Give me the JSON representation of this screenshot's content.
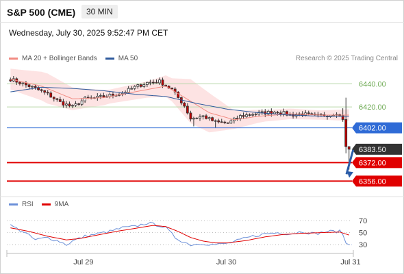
{
  "header": {
    "title": "S&P 500 (CME)",
    "timeframe": "30 MIN",
    "datetime": "Wednesday, July 30, 2025 9:52:47 PM CET"
  },
  "legend_main": [
    {
      "label": "MA 20 + Bollinger Bands",
      "color": "#f28b82"
    },
    {
      "label": "MA 50",
      "color": "#2e5a9c"
    }
  ],
  "legend_rsi": [
    {
      "label": "RSI",
      "color": "#6a8fd8"
    },
    {
      "label": "9MA",
      "color": "#e00000"
    }
  ],
  "copyright": "Research © 2025 Trading Central",
  "chart_data": [
    {
      "type": "candlestick",
      "title": "S&P 500 (CME) 30 MIN",
      "y_range": [
        6345,
        6452
      ],
      "y_ticks": [
        {
          "value": 6440,
          "label": "6440.00"
        },
        {
          "value": 6420,
          "label": "6420.00"
        }
      ],
      "x_ticks": [
        {
          "index": 24,
          "label": "Jul 29"
        },
        {
          "index": 70,
          "label": "Jul 30"
        },
        {
          "index": 110,
          "label": "Jul 31"
        }
      ],
      "bars": 110,
      "key_levels": [
        {
          "value": 6440,
          "label": "6440.00",
          "style": "green-line"
        },
        {
          "value": 6420,
          "label": "6420.00",
          "style": "green-line"
        },
        {
          "value": 6402,
          "label": "6402.00",
          "style": "blue-box"
        },
        {
          "value": 6383.5,
          "label": "6383.50",
          "style": "last-price"
        },
        {
          "value": 6372,
          "label": "6372.00",
          "style": "red-box"
        },
        {
          "value": 6356,
          "label": "6356.00",
          "style": "red-box"
        }
      ],
      "forecast_arrow": {
        "from": 6383,
        "to": 6359,
        "direction": "down"
      },
      "close_anchors": [
        [
          0,
          6444
        ],
        [
          4,
          6440
        ],
        [
          8,
          6436
        ],
        [
          12,
          6431
        ],
        [
          16,
          6424
        ],
        [
          20,
          6420
        ],
        [
          24,
          6427
        ],
        [
          28,
          6428
        ],
        [
          32,
          6430
        ],
        [
          36,
          6432
        ],
        [
          40,
          6437
        ],
        [
          44,
          6441
        ],
        [
          48,
          6442
        ],
        [
          52,
          6435
        ],
        [
          56,
          6421
        ],
        [
          58,
          6410
        ],
        [
          62,
          6412
        ],
        [
          66,
          6407
        ],
        [
          70,
          6406
        ],
        [
          74,
          6412
        ],
        [
          78,
          6414
        ],
        [
          82,
          6415
        ],
        [
          86,
          6416
        ],
        [
          90,
          6413
        ],
        [
          94,
          6414
        ],
        [
          98,
          6412
        ],
        [
          102,
          6413
        ],
        [
          105,
          6415
        ],
        [
          106,
          6412
        ],
        [
          107,
          6410
        ],
        [
          108,
          6385
        ],
        [
          109,
          6383.5
        ]
      ],
      "ma20_anchors": [
        [
          0,
          6444
        ],
        [
          10,
          6438
        ],
        [
          20,
          6427
        ],
        [
          30,
          6428
        ],
        [
          40,
          6433
        ],
        [
          50,
          6438
        ],
        [
          58,
          6425
        ],
        [
          64,
          6415
        ],
        [
          72,
          6409
        ],
        [
          80,
          6412
        ],
        [
          90,
          6414
        ],
        [
          100,
          6413
        ],
        [
          109,
          6413
        ]
      ],
      "ma50_anchors": [
        [
          0,
          6433
        ],
        [
          10,
          6437
        ],
        [
          20,
          6436
        ],
        [
          30,
          6434
        ],
        [
          40,
          6431
        ],
        [
          50,
          6429
        ],
        [
          60,
          6423
        ],
        [
          70,
          6418
        ],
        [
          80,
          6415
        ],
        [
          90,
          6413
        ],
        [
          100,
          6412
        ],
        [
          109,
          6412
        ]
      ],
      "bb_width_anchors": [
        [
          0,
          9
        ],
        [
          12,
          13
        ],
        [
          22,
          9
        ],
        [
          32,
          6
        ],
        [
          44,
          7
        ],
        [
          52,
          10
        ],
        [
          58,
          19
        ],
        [
          64,
          17
        ],
        [
          72,
          8
        ],
        [
          82,
          5
        ],
        [
          100,
          4
        ],
        [
          109,
          5
        ]
      ]
    },
    {
      "type": "line",
      "title": "RSI",
      "y_range": [
        20,
        78
      ],
      "levels": [
        70,
        50,
        30
      ],
      "y_ticks": [
        {
          "value": 70,
          "label": "70"
        },
        {
          "value": 50,
          "label": "50"
        },
        {
          "value": 30,
          "label": "30"
        }
      ],
      "series": [
        {
          "name": "RSI",
          "anchors": [
            [
              0,
              62
            ],
            [
              4,
              52
            ],
            [
              8,
              38
            ],
            [
              12,
              42
            ],
            [
              16,
              35
            ],
            [
              18,
              30
            ],
            [
              20,
              36
            ],
            [
              24,
              44
            ],
            [
              28,
              48
            ],
            [
              32,
              52
            ],
            [
              36,
              58
            ],
            [
              40,
              60
            ],
            [
              44,
              66
            ],
            [
              48,
              62
            ],
            [
              50,
              58
            ],
            [
              53,
              42
            ],
            [
              56,
              34
            ],
            [
              58,
              30
            ],
            [
              62,
              32
            ],
            [
              66,
              30
            ],
            [
              70,
              32
            ],
            [
              74,
              38
            ],
            [
              78,
              44
            ],
            [
              82,
              48
            ],
            [
              86,
              50
            ],
            [
              90,
              48
            ],
            [
              94,
              52
            ],
            [
              98,
              48
            ],
            [
              102,
              52
            ],
            [
              106,
              52
            ],
            [
              107,
              48
            ],
            [
              108,
              32
            ],
            [
              109,
              30
            ]
          ]
        },
        {
          "name": "9MA",
          "anchors": [
            [
              0,
              58
            ],
            [
              6,
              52
            ],
            [
              12,
              44
            ],
            [
              18,
              38
            ],
            [
              22,
              40
            ],
            [
              28,
              46
            ],
            [
              34,
              52
            ],
            [
              40,
              57
            ],
            [
              46,
              62
            ],
            [
              50,
              60
            ],
            [
              54,
              52
            ],
            [
              58,
              42
            ],
            [
              62,
              36
            ],
            [
              66,
              33
            ],
            [
              70,
              33
            ],
            [
              76,
              37
            ],
            [
              82,
              43
            ],
            [
              88,
              47
            ],
            [
              94,
              49
            ],
            [
              100,
              50
            ],
            [
              106,
              51
            ],
            [
              109,
              46
            ]
          ]
        }
      ]
    }
  ]
}
